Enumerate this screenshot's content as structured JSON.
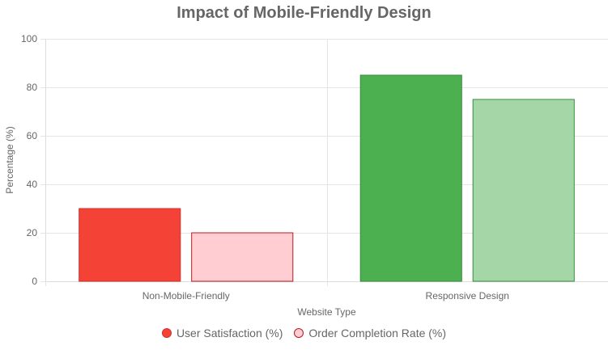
{
  "chart_data": {
    "type": "bar",
    "title": "Impact of Mobile-Friendly Design",
    "xlabel": "Website Type",
    "ylabel": "Percentage (%)",
    "categories": [
      "Non-Mobile-Friendly",
      "Responsive Design"
    ],
    "ylim": [
      0,
      100
    ],
    "yticks": [
      "0",
      "20",
      "40",
      "60",
      "80",
      "100"
    ],
    "grid": true,
    "legend_position": "bottom",
    "series": [
      {
        "name": "User Satisfaction (%)",
        "values": [
          30,
          85
        ],
        "colors": [
          "#f44336",
          "#4caf50"
        ],
        "border_colors": [
          "#d32f2f",
          "#388e3c"
        ],
        "legend_fill": "#f44336",
        "legend_border": "#d32f2f"
      },
      {
        "name": "Order Completion Rate (%)",
        "values": [
          20,
          75
        ],
        "colors": [
          "#ffcdd2",
          "#a5d6a7"
        ],
        "border_colors": [
          "#b71c1c",
          "#388e3c"
        ],
        "legend_fill": "#ffcdd2",
        "legend_border": "#b71c1c"
      }
    ]
  }
}
